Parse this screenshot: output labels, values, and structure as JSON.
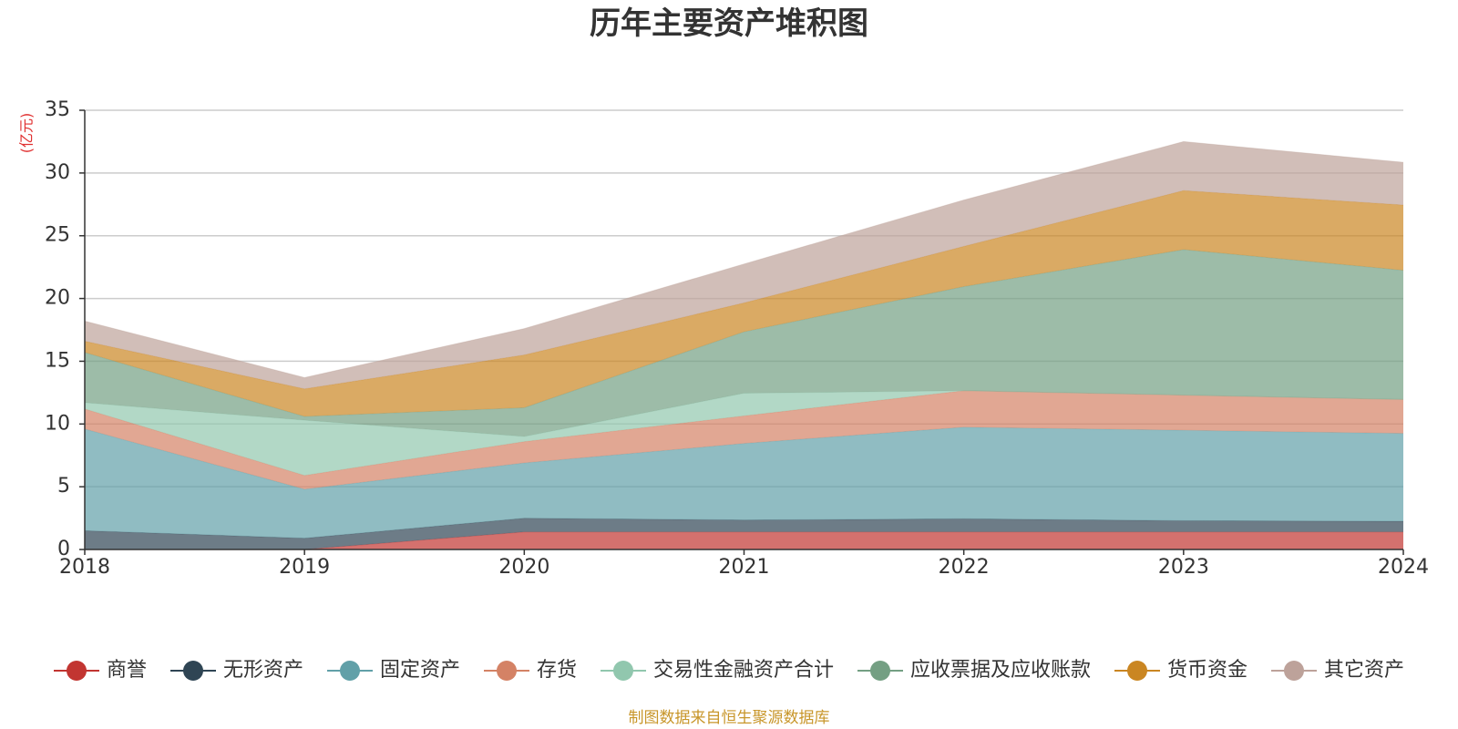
{
  "chart_data": {
    "type": "area",
    "stacked": true,
    "title": "历年主要资产堆积图",
    "ylabel": "(亿元)",
    "xlabel": "",
    "ylim": [
      0,
      35
    ],
    "yticks": [
      0,
      5,
      10,
      15,
      20,
      25,
      30,
      35
    ],
    "categories": [
      "2018",
      "2019",
      "2020",
      "2021",
      "2022",
      "2023",
      "2024"
    ],
    "series": [
      {
        "name": "商誉",
        "color": "#c23531",
        "values": [
          0,
          0,
          1.4,
          1.4,
          1.4,
          1.4,
          1.4
        ]
      },
      {
        "name": "无形资产",
        "color": "#2f4554",
        "values": [
          1.5,
          0.9,
          1.1,
          0.95,
          1.05,
          0.9,
          0.85
        ]
      },
      {
        "name": "固定资产",
        "color": "#61a0a8",
        "values": [
          8.1,
          3.9,
          4.4,
          6.1,
          7.3,
          7.2,
          7.0
        ]
      },
      {
        "name": "存货",
        "color": "#d48265",
        "values": [
          1.6,
          1.1,
          1.7,
          2.2,
          2.9,
          2.8,
          2.7
        ]
      },
      {
        "name": "交易性金融资产合计",
        "color": "#91c7ae",
        "values": [
          0.5,
          4.4,
          0.4,
          1.8,
          0,
          0,
          0
        ]
      },
      {
        "name": "应收票据及应收账款",
        "color": "#749f83",
        "values": [
          4.0,
          0.3,
          2.3,
          4.9,
          8.3,
          11.6,
          10.3
        ]
      },
      {
        "name": "货币资金",
        "color": "#ca8622",
        "values": [
          0.9,
          2.2,
          4.2,
          2.3,
          3.2,
          4.7,
          5.2
        ]
      },
      {
        "name": "其它资产",
        "color": "#bda29a",
        "values": [
          1.6,
          0.9,
          2.1,
          3.1,
          3.7,
          3.9,
          3.4
        ]
      }
    ],
    "grid": true,
    "legend_position": "bottom"
  },
  "footer": {
    "source": "制图数据来自恒生聚源数据库"
  }
}
